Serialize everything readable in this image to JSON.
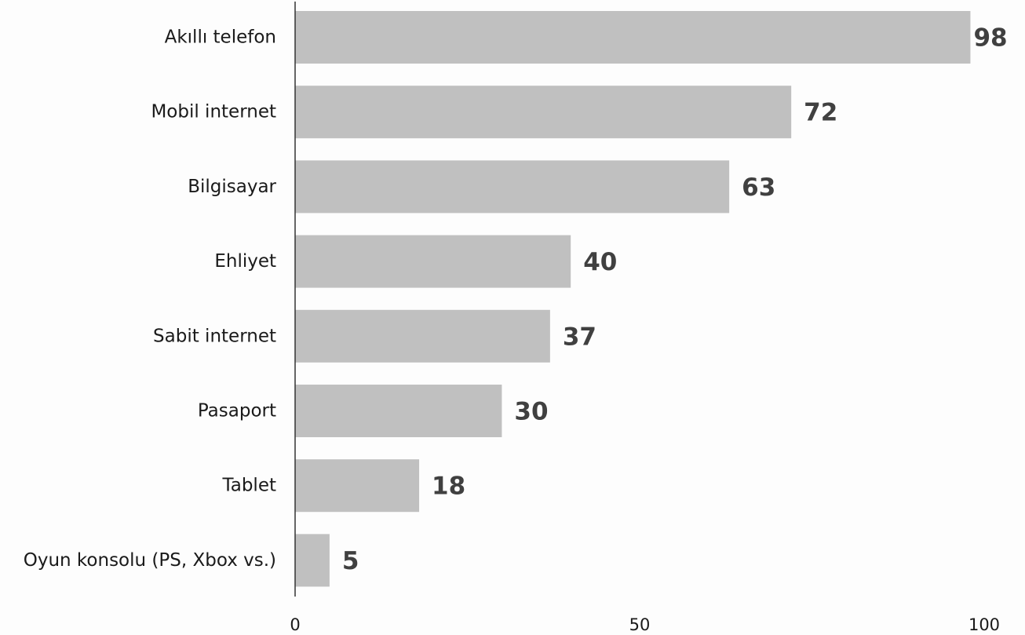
{
  "chart_data": {
    "type": "bar",
    "orientation": "horizontal",
    "title": "",
    "xlabel": "",
    "ylabel": "",
    "categories": [
      "Akıllı telefon",
      "Mobil internet",
      "Bilgisayar",
      "Ehliyet",
      "Sabit internet",
      "Pasaport",
      "Tablet",
      "Oyun konsolu (PS, Xbox vs.)"
    ],
    "values": [
      98,
      72,
      63,
      40,
      37,
      30,
      18,
      5
    ],
    "value_labels": [
      "98",
      "72",
      "63",
      "40",
      "37",
      "30",
      "18",
      "5"
    ],
    "xlim": [
      0,
      100
    ],
    "xticks": [
      0,
      50,
      100
    ],
    "xtick_labels": [
      "0",
      "50",
      "100"
    ],
    "grid": false,
    "legend": "none",
    "colors": {
      "bar": "#c0c0c0",
      "value_label": "#404040",
      "axis": "#333333",
      "text": "#1a1a1a",
      "background": "#fdfdfd"
    }
  }
}
